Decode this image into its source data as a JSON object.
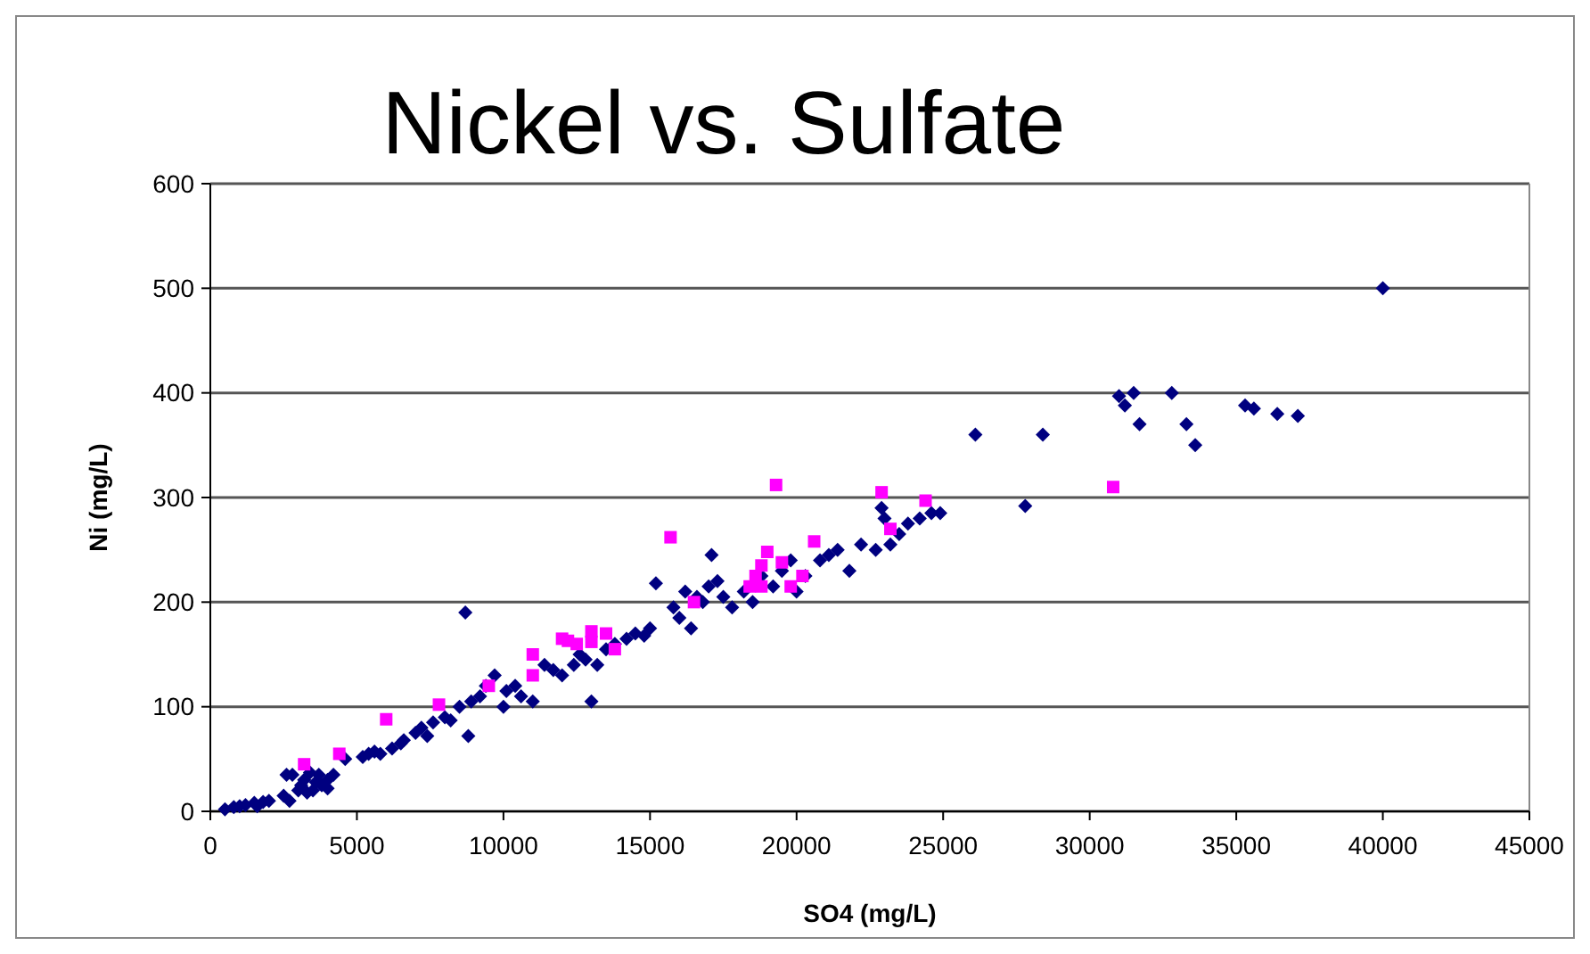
{
  "chart_data": {
    "type": "scatter",
    "title": "Nickel vs. Sulfate",
    "xlabel": "SO4 (mg/L)",
    "ylabel": "Ni (mg/L)",
    "xlim": [
      0,
      45000
    ],
    "xticks": [
      0,
      5000,
      10000,
      15000,
      20000,
      25000,
      30000,
      35000,
      40000,
      45000
    ],
    "ylim": [
      0,
      600
    ],
    "yticks": [
      0,
      100,
      200,
      300,
      400,
      500,
      600
    ],
    "grid": "y",
    "series": [
      {
        "color": "#000080",
        "marker": "diamond",
        "x": [
          500,
          800,
          1000,
          1200,
          1500,
          1800,
          2000,
          1600,
          2500,
          2600,
          2800,
          3000,
          3100,
          3200,
          3300,
          3500,
          3600,
          3700,
          3800,
          4000,
          4200,
          4000,
          3400,
          2700,
          4600,
          5200,
          5400,
          5600,
          5800,
          6200,
          6500,
          6600,
          7000,
          7200,
          7400,
          7600,
          8000,
          8200,
          8500,
          8700,
          8900,
          8800,
          9200,
          9400,
          9700,
          10000,
          10100,
          10400,
          10600,
          11000,
          11400,
          11700,
          12000,
          12400,
          12600,
          12800,
          13000,
          13200,
          13500,
          13800,
          14200,
          14500,
          14800,
          15000,
          15200,
          15800,
          16000,
          16200,
          16400,
          16600,
          16800,
          17000,
          17100,
          17300,
          17500,
          17800,
          18200,
          18500,
          18800,
          19200,
          19500,
          19800,
          20000,
          20300,
          20800,
          21100,
          21400,
          21800,
          22200,
          22700,
          22900,
          23000,
          23200,
          23500,
          23800,
          24200,
          24600,
          24900,
          26100,
          27800,
          28400,
          31000,
          31200,
          31500,
          31700,
          32800,
          33300,
          33600,
          35300,
          35600,
          36400,
          37100,
          40000
        ],
        "values": [
          2,
          4,
          5,
          6,
          8,
          9,
          10,
          5,
          15,
          35,
          35,
          20,
          25,
          30,
          18,
          20,
          28,
          35,
          25,
          30,
          35,
          22,
          37,
          10,
          50,
          52,
          55,
          57,
          55,
          60,
          65,
          68,
          75,
          80,
          72,
          85,
          90,
          87,
          100,
          190,
          105,
          72,
          110,
          120,
          130,
          100,
          115,
          120,
          110,
          105,
          140,
          135,
          130,
          140,
          150,
          145,
          105,
          140,
          155,
          160,
          165,
          170,
          168,
          175,
          218,
          195,
          185,
          210,
          175,
          205,
          200,
          215,
          245,
          220,
          205,
          195,
          210,
          200,
          225,
          215,
          230,
          240,
          210,
          225,
          240,
          245,
          250,
          230,
          255,
          250,
          290,
          280,
          255,
          265,
          275,
          280,
          285,
          285,
          360,
          292,
          360,
          397,
          388,
          400,
          370,
          400,
          370,
          350,
          388,
          385,
          380,
          378,
          500
        ]
      },
      {
        "color": "#ff00ff",
        "marker": "square",
        "x": [
          3200,
          4400,
          6000,
          7800,
          9500,
          11000,
          11000,
          12000,
          12200,
          12500,
          13000,
          13000,
          13500,
          13800,
          15700,
          16500,
          18400,
          18600,
          18800,
          18800,
          19000,
          19300,
          19500,
          19800,
          20200,
          20600,
          22900,
          23200,
          24400,
          30800
        ],
        "values": [
          45,
          55,
          88,
          102,
          120,
          150,
          130,
          165,
          163,
          160,
          172,
          162,
          170,
          155,
          262,
          200,
          215,
          225,
          235,
          215,
          248,
          312,
          238,
          215,
          225,
          258,
          305,
          270,
          297,
          310
        ]
      }
    ]
  }
}
